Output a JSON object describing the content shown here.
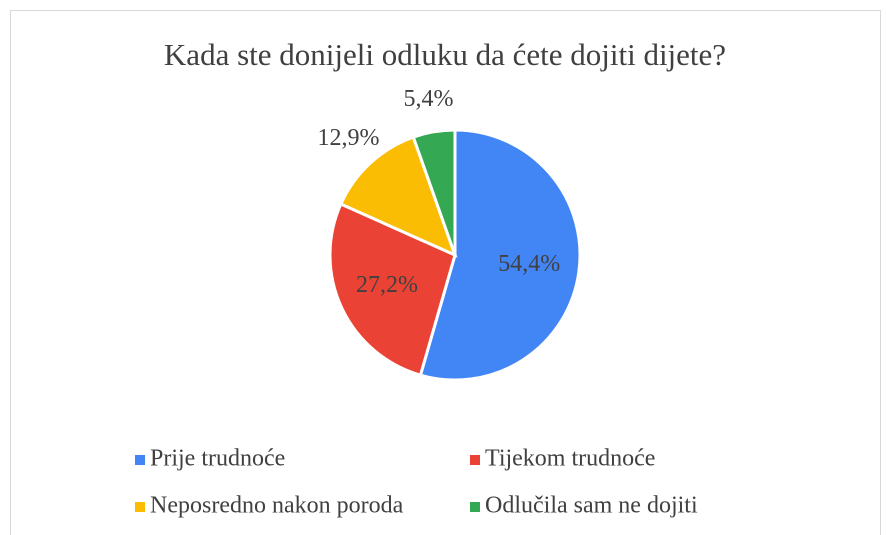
{
  "chart_data": {
    "type": "pie",
    "title": "Kada ste donijeli odluku da ćete dojiti dijete?",
    "categories": [
      "Prije trudnoće",
      "Tijekom trudnoće",
      "Neposredno nakon poroda",
      "Odlučila sam ne dojiti"
    ],
    "values": [
      54.4,
      27.2,
      12.9,
      5.4
    ],
    "value_labels": [
      "54,4%",
      "27,2%",
      "12,9%",
      "5,4%"
    ],
    "colors": [
      "#4285f4",
      "#ea4335",
      "#fbbc04",
      "#34a853"
    ],
    "legend": "bottom"
  }
}
